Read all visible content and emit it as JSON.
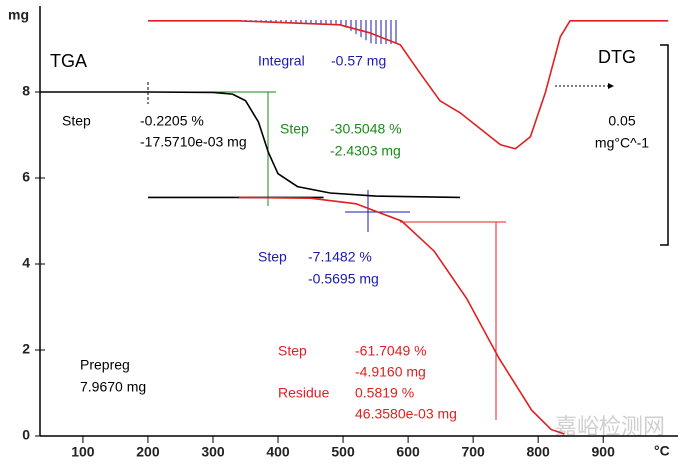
{
  "chart_data": {
    "type": "line",
    "y_label": "mg",
    "x_label": "°C",
    "xlim": [
      34,
      1015
    ],
    "ylim": [
      0,
      10
    ],
    "y2lim": [
      -0.1038,
      0.0037
    ],
    "xticks": [
      100,
      200,
      300,
      400,
      500,
      600,
      700,
      800,
      900
    ],
    "yticks": [
      0,
      2,
      4,
      6,
      8
    ],
    "series": [
      {
        "color": "#000000",
        "x": [
          34,
          100,
          200,
          300,
          330,
          350,
          370,
          385,
          400,
          430,
          480,
          550,
          680
        ],
        "values": [
          8.0,
          8.0,
          8.0,
          7.99,
          7.95,
          7.8,
          7.3,
          6.6,
          6.1,
          5.8,
          5.65,
          5.58,
          5.55
        ]
      },
      {
        "color": "#000000",
        "x": [
          200,
          470
        ],
        "values": [
          5.55,
          5.55
        ]
      },
      {
        "color": "#e02020",
        "x": [
          340,
          450,
          520,
          590,
          640,
          690,
          740,
          790,
          820,
          840
        ],
        "values": [
          5.55,
          5.53,
          5.4,
          5.0,
          4.3,
          3.2,
          1.8,
          0.6,
          0.15,
          0.05
        ]
      },
      {
        "color": "#e02020",
        "axis": "y2",
        "x": [
          200,
          337,
          495,
          541,
          588,
          618,
          649,
          680,
          711,
          742,
          765,
          788,
          811,
          834,
          849,
          1000
        ],
        "values": [
          0,
          0,
          -0.001,
          -0.003,
          -0.006,
          -0.013,
          -0.02,
          -0.023,
          -0.027,
          -0.031,
          -0.032,
          -0.029,
          -0.018,
          -0.004,
          0,
          0
        ]
      }
    ],
    "scale_bar": {
      "value": 0.05,
      "label": "0.05"
    },
    "scale_unit": "mg°C^-1",
    "annotations": [
      "TGA",
      "DTG",
      "Integral",
      "-0.57 mg",
      "Step",
      "-0.2205 %",
      "-17.5710e-03 mg",
      "Step",
      "-30.5048 %",
      "-2.4303 mg",
      "Step",
      "-7.1482 %",
      "-0.5695 mg",
      "Step",
      "-61.7049 %",
      "-4.9160 mg",
      "Residue",
      "0.5819 %",
      "46.3580e-03 mg",
      "Prepreg",
      "7.9670 mg",
      "嘉峪检测网"
    ]
  }
}
